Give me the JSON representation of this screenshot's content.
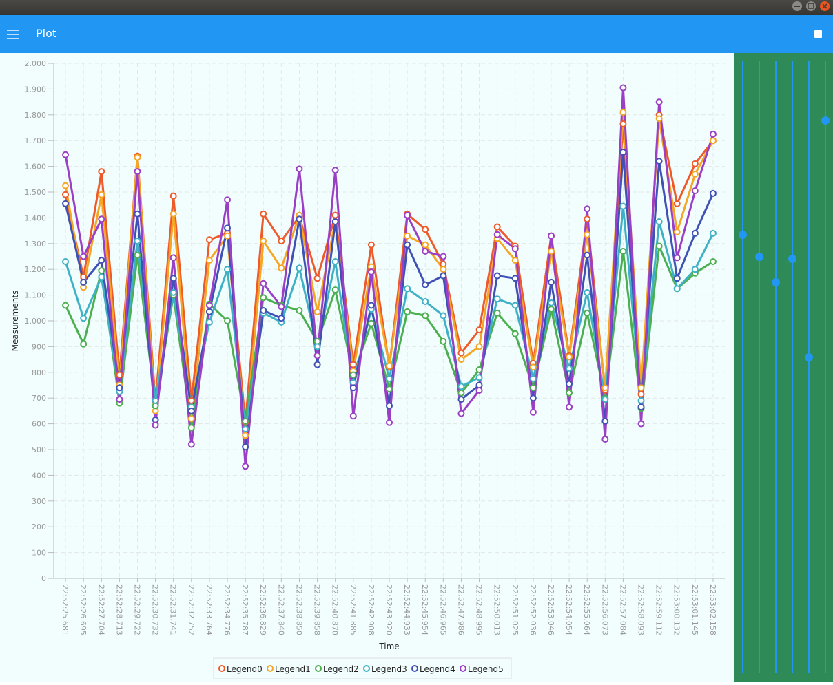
{
  "app_title": "Plot",
  "chart_data": {
    "type": "line",
    "x_label": "Time",
    "y_label": "Measurements",
    "categories": [
      "22:52:25.681",
      "22:52:26.695",
      "22:52:27.704",
      "22:52:28.713",
      "22:52:29.722",
      "22:52:30.732",
      "22:52:31.741",
      "22:52:32.752",
      "22:52:33.764",
      "22:52:34.776",
      "22:52:35.787",
      "22:52:36.829",
      "22:52:37.840",
      "22:52:38.850",
      "22:52:39.858",
      "22:52:40.870",
      "22:52:41.885",
      "22:52:42.908",
      "22:52:43.920",
      "22:52:44.933",
      "22:52:45.954",
      "22:52:46.965",
      "22:52:47.986",
      "22:52:48.995",
      "22:52:50.013",
      "22:52:51.025",
      "22:52:52.036",
      "22:52:53.046",
      "22:52:54.054",
      "22:52:55.064",
      "22:52:56.073",
      "22:52:57.084",
      "22:52:58.093",
      "22:52:59.112",
      "22:53:00.132",
      "22:53:01.145",
      "22:53:02.158"
    ],
    "series": [
      {
        "name": "Legend0",
        "color": "#ee5a2a",
        "values": [
          1490,
          1170,
          1580,
          790,
          1640,
          685,
          1485,
          690,
          1315,
          1340,
          605,
          1415,
          1310,
          1405,
          1165,
          1410,
          830,
          1295,
          820,
          1415,
          1355,
          1220,
          875,
          965,
          1365,
          1290,
          835,
          1330,
          865,
          1395,
          730,
          1765,
          715,
          1800,
          1455,
          1610,
          1700
        ]
      },
      {
        "name": "Legend1",
        "color": "#f5a623",
        "values": [
          1525,
          1130,
          1490,
          750,
          1635,
          650,
          1415,
          620,
          1235,
          1330,
          555,
          1310,
          1205,
          1410,
          1035,
          1385,
          805,
          1210,
          825,
          1330,
          1295,
          1200,
          850,
          900,
          1320,
          1235,
          820,
          1270,
          860,
          1335,
          740,
          1810,
          740,
          1785,
          1345,
          1570,
          1700
        ]
      },
      {
        "name": "Legend2",
        "color": "#4caf50",
        "values": [
          1060,
          910,
          1195,
          680,
          1255,
          670,
          1100,
          585,
          1065,
          1000,
          610,
          1090,
          1060,
          1040,
          920,
          1120,
          790,
          990,
          735,
          1035,
          1020,
          920,
          720,
          810,
          1030,
          950,
          740,
          1045,
          720,
          1030,
          700,
          1270,
          660,
          1290,
          1125,
          1185,
          1230
        ]
      },
      {
        "name": "Legend3",
        "color": "#3fb1c6",
        "values": [
          1230,
          1010,
          1170,
          725,
          1310,
          690,
          1110,
          665,
          995,
          1200,
          580,
          1030,
          995,
          1205,
          900,
          1230,
          760,
          1045,
          775,
          1125,
          1075,
          1020,
          745,
          780,
          1085,
          1060,
          775,
          1070,
          815,
          1110,
          695,
          1445,
          690,
          1385,
          1125,
          1200,
          1340
        ]
      },
      {
        "name": "Legend4",
        "color": "#3f51b5",
        "values": [
          1455,
          1150,
          1235,
          740,
          1415,
          615,
          1165,
          650,
          1035,
          1360,
          510,
          1040,
          1010,
          1395,
          830,
          1385,
          740,
          1060,
          670,
          1295,
          1140,
          1175,
          695,
          750,
          1175,
          1165,
          700,
          1150,
          755,
          1255,
          610,
          1655,
          665,
          1620,
          1165,
          1340,
          1495
        ]
      },
      {
        "name": "Legend5",
        "color": "#9c3fc7",
        "values": [
          1645,
          1250,
          1395,
          695,
          1580,
          595,
          1245,
          520,
          1060,
          1470,
          435,
          1145,
          1055,
          1590,
          865,
          1585,
          630,
          1190,
          605,
          1410,
          1270,
          1250,
          640,
          730,
          1335,
          1280,
          645,
          1330,
          665,
          1435,
          540,
          1905,
          600,
          1850,
          1245,
          1505,
          1725
        ]
      }
    ],
    "ylim": [
      0,
      2000
    ],
    "yticks": [
      0,
      100,
      200,
      300,
      400,
      500,
      600,
      700,
      800,
      900,
      {
        "value": 1000,
        "label": "1.000"
      },
      {
        "value": 1100,
        "label": "1.100"
      },
      {
        "value": 1200,
        "label": "1.200"
      },
      {
        "value": 1300,
        "label": "1.300"
      },
      {
        "value": 1400,
        "label": "1.400"
      },
      {
        "value": 1500,
        "label": "1.500"
      },
      {
        "value": 1600,
        "label": "1.600"
      },
      {
        "value": 1700,
        "label": "1.700"
      },
      {
        "value": 1800,
        "label": "1.800"
      },
      {
        "value": 1900,
        "label": "1.900"
      },
      {
        "value": 2000,
        "label": "2.000"
      }
    ],
    "grid": true,
    "legend": "bottom"
  }
}
